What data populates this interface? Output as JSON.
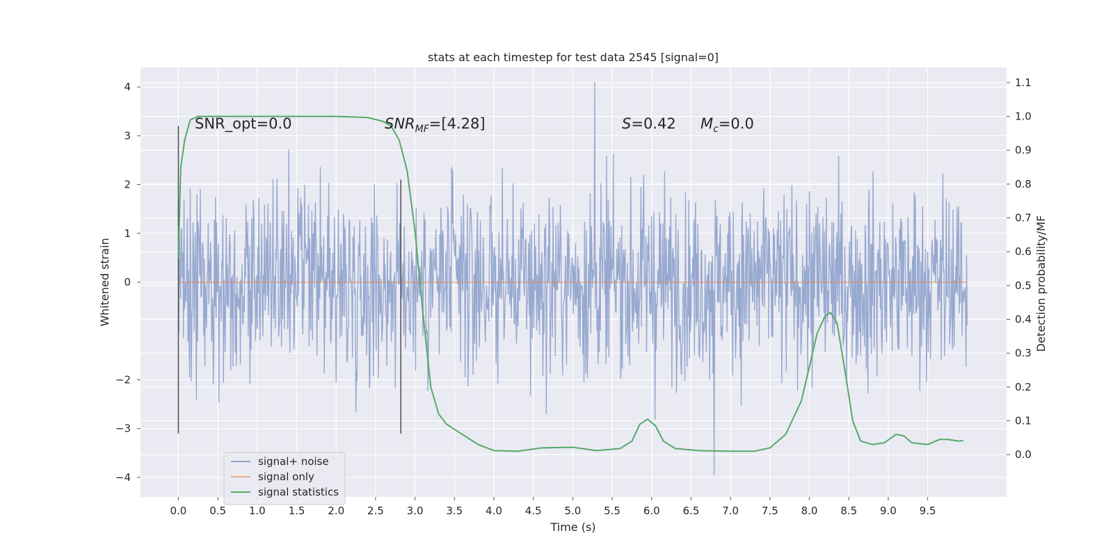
{
  "chart_data": {
    "type": "line",
    "title": "stats at each timestep for test data 2545 [signal=0]",
    "xlabel": "Time (s)",
    "ylabel": "Whitened strain",
    "ylabel_right": "Detection probability/MF",
    "xlim": [
      -0.48,
      10.5
    ],
    "ylim": [
      -4.4,
      4.4
    ],
    "ylim_right": [
      -0.125,
      1.145
    ],
    "x_ticks": [
      "0.0",
      "0.5",
      "1.0",
      "1.5",
      "2.0",
      "2.5",
      "3.0",
      "3.5",
      "4.0",
      "4.5",
      "5.0",
      "5.5",
      "6.0",
      "6.5",
      "7.0",
      "7.5",
      "8.0",
      "8.5",
      "9.0",
      "9.5"
    ],
    "y_ticks": [
      "4",
      "3",
      "2",
      "1",
      "0",
      "−2",
      "−3",
      "−4"
    ],
    "y_ticks_right": [
      "1.1",
      "1.0",
      "0.9",
      "0.8",
      "0.7",
      "0.6",
      "0.5",
      "0.4",
      "0.3",
      "0.2",
      "0.1",
      "0.0"
    ],
    "grid": true,
    "legend_position": "lower-left",
    "annotations": {
      "snr_opt": "SNR_opt=0.0",
      "snr_mf_base": "SNR",
      "snr_mf_sub": "MF",
      "snr_mf_rest": "=[4.28]",
      "s_stat_base": "S",
      "s_stat_rest": "=0.42",
      "mc_base": "M",
      "mc_sub": "c",
      "mc_rest": "=0.0"
    },
    "vertical_markers": [
      {
        "x": 0.0,
        "y_range": [
          -3.1,
          3.2
        ]
      },
      {
        "x": 2.82,
        "y_range": [
          -3.1,
          2.1
        ]
      }
    ],
    "series": [
      {
        "name": "signal+ noise",
        "color": "#8ea2cc",
        "axis": "left",
        "x_range": [
          0.0,
          10.0
        ],
        "samples": 4096,
        "typical_amplitude": 1.0,
        "extremes": {
          "max": 4.1,
          "min": -3.95
        }
      },
      {
        "name": "signal only",
        "color": "#dd8452",
        "axis": "left",
        "x": [
          0.0,
          10.0
        ],
        "y": [
          0.0,
          0.0
        ]
      },
      {
        "name": "signal statistics",
        "color": "#55a868",
        "axis": "right",
        "x": [
          0.0,
          0.03,
          0.08,
          0.15,
          0.25,
          0.5,
          1.0,
          2.0,
          2.4,
          2.6,
          2.7,
          2.8,
          2.9,
          3.0,
          3.1,
          3.2,
          3.3,
          3.4,
          3.5,
          3.6,
          3.8,
          4.0,
          4.3,
          4.6,
          5.0,
          5.3,
          5.6,
          5.75,
          5.85,
          5.95,
          6.05,
          6.15,
          6.3,
          6.6,
          7.0,
          7.3,
          7.5,
          7.7,
          7.9,
          8.0,
          8.1,
          8.2,
          8.27,
          8.35,
          8.45,
          8.55,
          8.65,
          8.8,
          8.95,
          9.1,
          9.2,
          9.3,
          9.5,
          9.65,
          9.75,
          9.9,
          9.95
        ],
        "y": [
          0.58,
          0.85,
          0.93,
          0.99,
          1.0,
          1.0,
          1.0,
          1.0,
          0.997,
          0.985,
          0.97,
          0.93,
          0.84,
          0.66,
          0.42,
          0.2,
          0.12,
          0.09,
          0.075,
          0.06,
          0.03,
          0.012,
          0.01,
          0.02,
          0.022,
          0.012,
          0.018,
          0.04,
          0.09,
          0.105,
          0.085,
          0.04,
          0.018,
          0.012,
          0.01,
          0.01,
          0.02,
          0.06,
          0.16,
          0.26,
          0.36,
          0.41,
          0.42,
          0.39,
          0.25,
          0.1,
          0.04,
          0.03,
          0.035,
          0.06,
          0.055,
          0.035,
          0.03,
          0.045,
          0.045,
          0.04,
          0.042
        ]
      }
    ]
  },
  "legend": {
    "items": [
      {
        "label": "signal+ noise",
        "color": "#8ea2cc"
      },
      {
        "label": "signal only",
        "color": "#dd8452"
      },
      {
        "label": "signal statistics",
        "color": "#55a868"
      }
    ]
  }
}
